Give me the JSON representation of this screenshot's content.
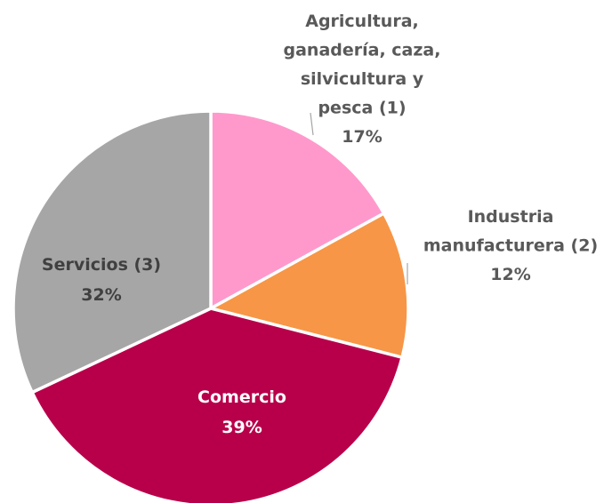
{
  "chart_data": {
    "type": "pie",
    "title": "",
    "slices": [
      {
        "label_lines": [
          "Agricultura,",
          "ganadería, caza,",
          "silvicultura y",
          "pesca (1)"
        ],
        "value": 17,
        "value_label": "17%",
        "color": "#FF99CC",
        "label_color": "#595959"
      },
      {
        "label_lines": [
          "Industria",
          "manufacturera (2)"
        ],
        "value": 12,
        "value_label": "12%",
        "color": "#F79646",
        "label_color": "#595959"
      },
      {
        "label_lines": [
          "Comercio"
        ],
        "value": 39,
        "value_label": "39%",
        "color": "#B8004A",
        "label_color": "#FFFFFF"
      },
      {
        "label_lines": [
          "Servicios (3)"
        ],
        "value": 32,
        "value_label": "32%",
        "color": "#A6A6A6",
        "label_color": "#404040"
      }
    ],
    "start_angle_deg": 0,
    "direction": "clockwise",
    "legend": "none"
  }
}
